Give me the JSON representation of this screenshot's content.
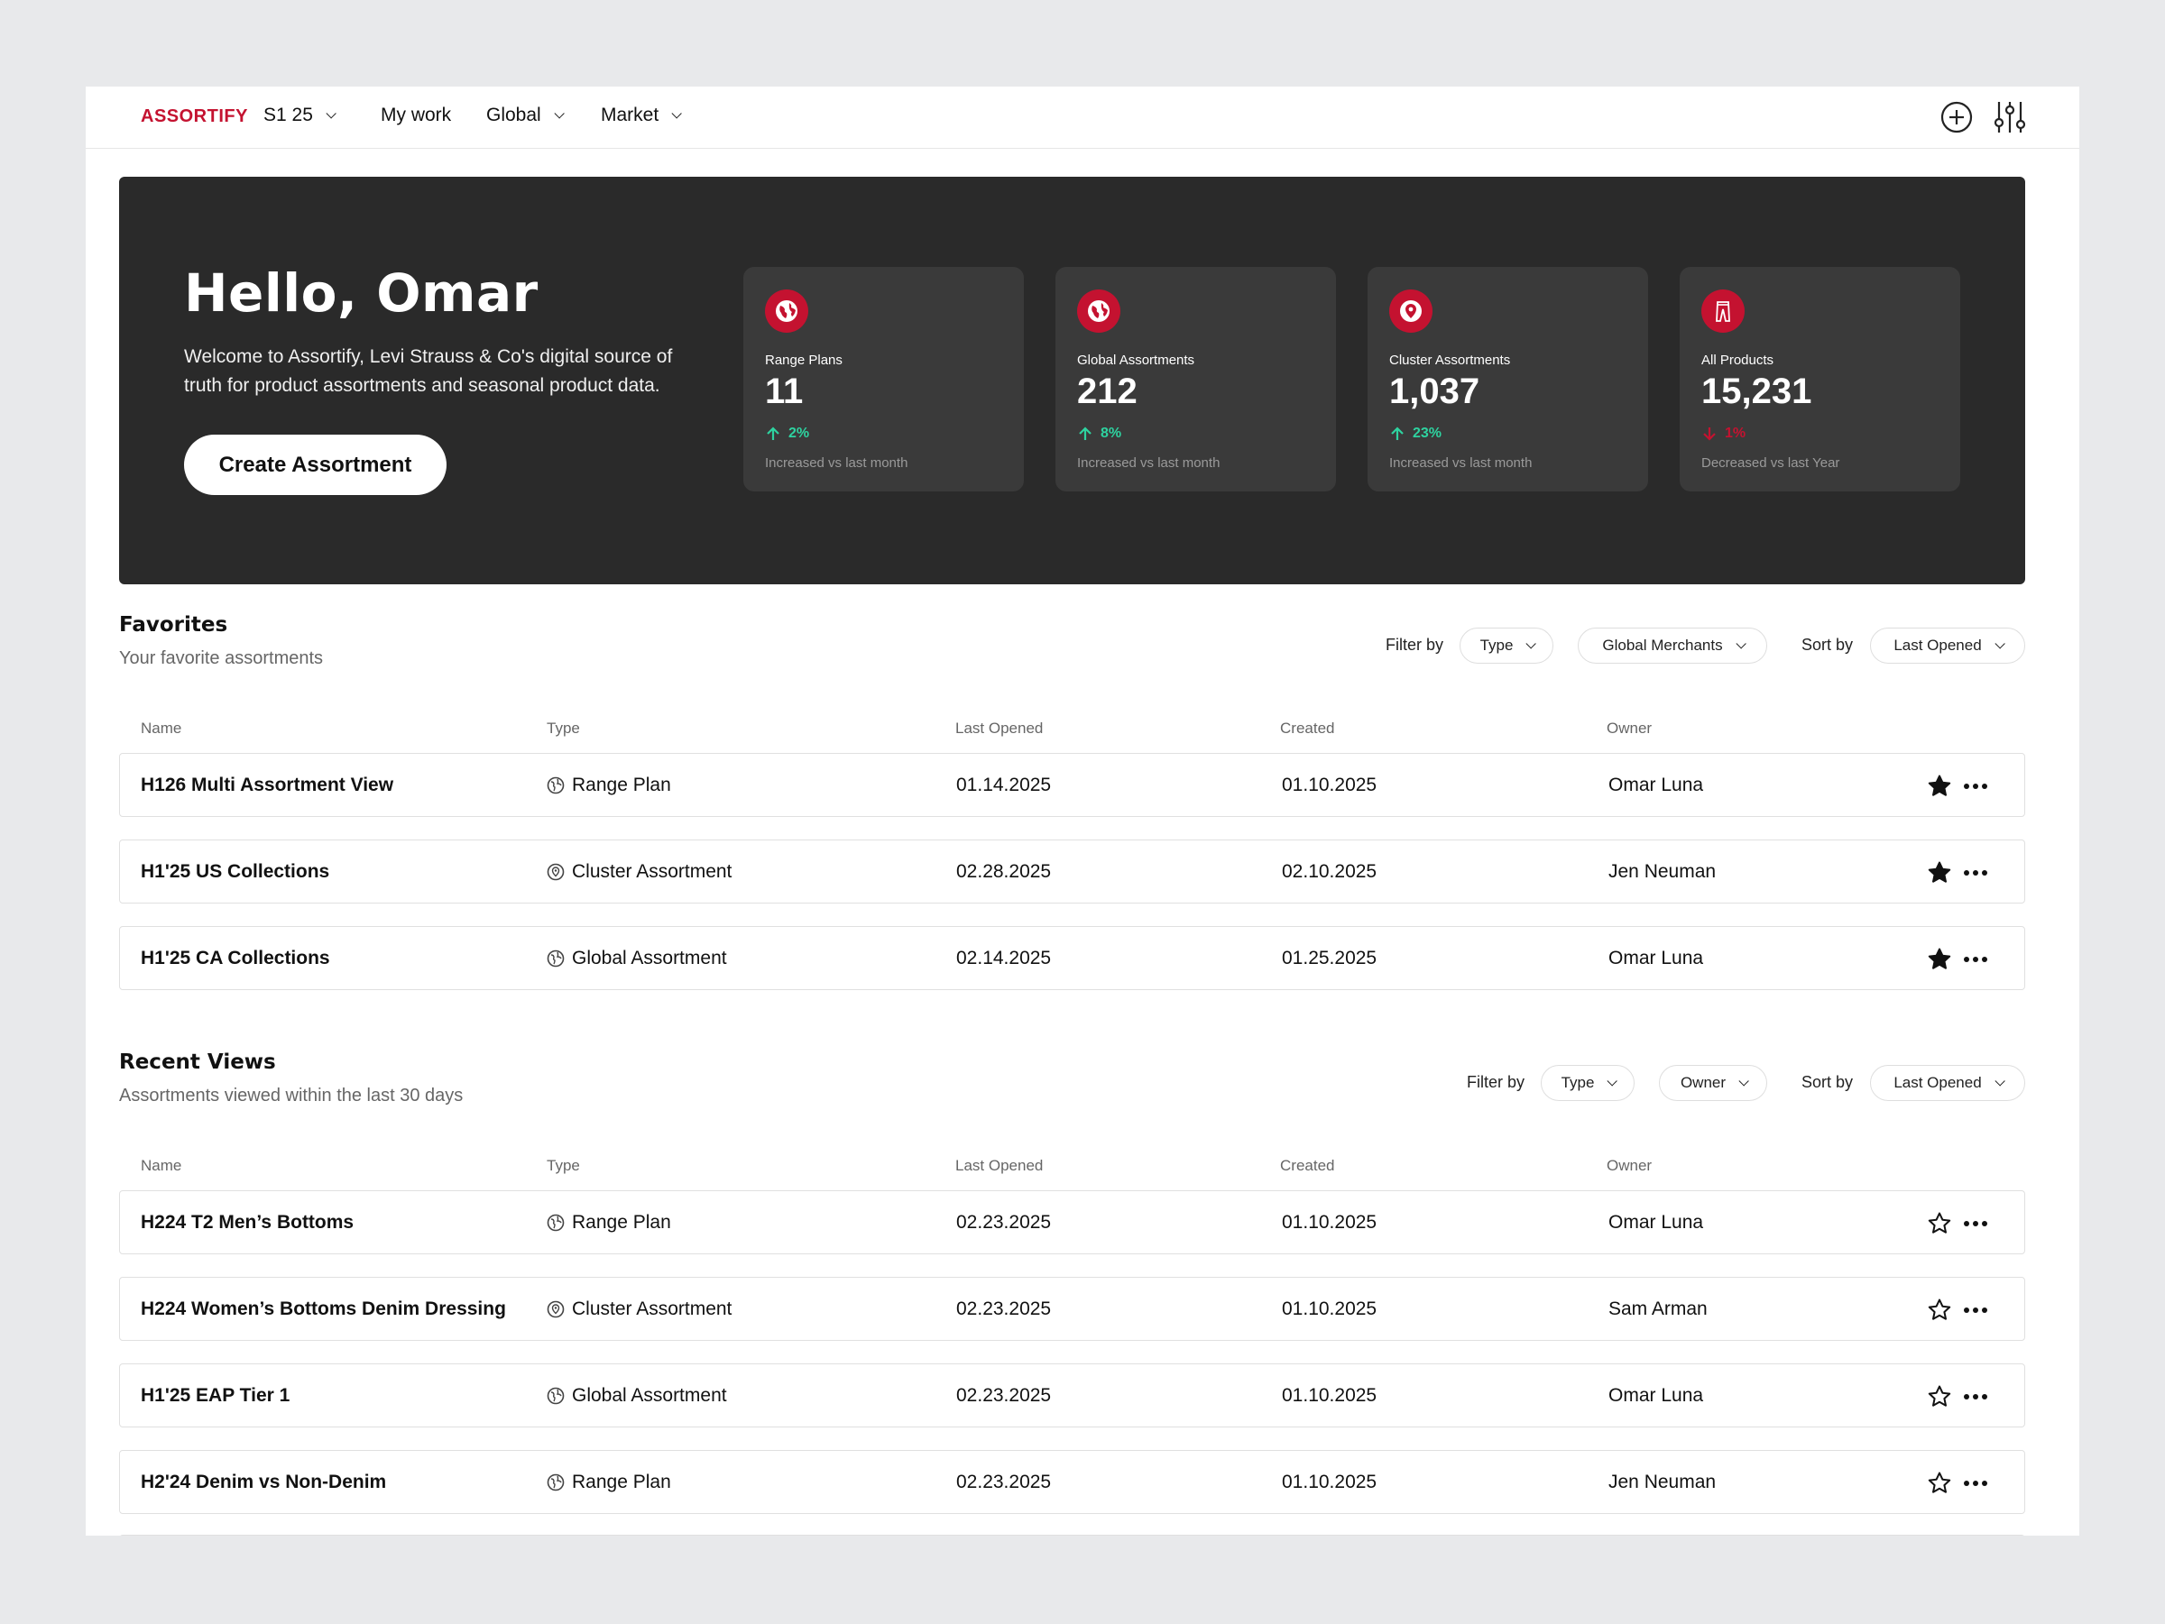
{
  "nav": {
    "logo": "ASSORTIFY",
    "season": "S1 25",
    "items": [
      "My work",
      "Global",
      "Market"
    ]
  },
  "hero": {
    "greeting": "Hello, Omar",
    "description": "Welcome to Assortify, Levi Strauss & Co's digital source of truth for product assortments and seasonal product data.",
    "cta": "Create Assortment",
    "stats": [
      {
        "icon": "globe-icon",
        "label": "Range Plans",
        "value": "11",
        "change": "2%",
        "direction": "up",
        "note": "Increased vs last month"
      },
      {
        "icon": "globe-icon",
        "label": "Global Assortments",
        "value": "212",
        "change": "8%",
        "direction": "up",
        "note": "Increased vs last month"
      },
      {
        "icon": "location-pin-icon",
        "label": "Cluster Assortments",
        "value": "1,037",
        "change": "23%",
        "direction": "up",
        "note": "Increased vs last month"
      },
      {
        "icon": "jeans-icon",
        "label": "All Products",
        "value": "15,231",
        "change": "1%",
        "direction": "down",
        "note": "Decreased vs last Year"
      }
    ]
  },
  "colors": {
    "brand": "#c41230",
    "hero_bg": "#2a2a2a",
    "card_bg": "#3a3a3a",
    "increase": "#2ed3a0",
    "decrease": "#c41230"
  },
  "columns": {
    "name": "Name",
    "type": "Type",
    "last_opened": "Last Opened",
    "created": "Created",
    "owner": "Owner"
  },
  "favorites": {
    "title": "Favorites",
    "subtitle": "Your favorite assortments",
    "filter_label": "Filter by",
    "filter_1": "Type",
    "filter_2": "Global Merchants",
    "sort_label": "Sort by",
    "sort": "Last Opened",
    "rows": [
      {
        "name": "H126 Multi Assortment View",
        "type": "Range Plan",
        "type_icon": "globe-icon",
        "last_opened": "01.14.2025",
        "created": "01.10.2025",
        "owner": "Omar Luna",
        "starred": true
      },
      {
        "name": "H1'25 US Collections",
        "type": "Cluster Assortment",
        "type_icon": "location-pin-icon",
        "last_opened": "02.28.2025",
        "created": "02.10.2025",
        "owner": "Jen Neuman",
        "starred": true
      },
      {
        "name": "H1'25 CA Collections",
        "type": "Global Assortment",
        "type_icon": "globe-icon",
        "last_opened": "02.14.2025",
        "created": "01.25.2025",
        "owner": "Omar Luna",
        "starred": true
      }
    ]
  },
  "recent": {
    "title": "Recent Views",
    "subtitle": "Assortments viewed within the last 30 days",
    "filter_label": "Filter by",
    "filter_1": "Type",
    "filter_2": "Owner",
    "sort_label": "Sort by",
    "sort": "Last Opened",
    "rows": [
      {
        "name": "H224 T2 Men’s Bottoms",
        "type": "Range Plan",
        "type_icon": "globe-icon",
        "last_opened": "02.23.2025",
        "created": "01.10.2025",
        "owner": "Omar Luna",
        "starred": false
      },
      {
        "name": "H224 Women’s Bottoms Denim Dressing",
        "type": "Cluster Assortment",
        "type_icon": "location-pin-icon",
        "last_opened": "02.23.2025",
        "created": "01.10.2025",
        "owner": "Sam Arman",
        "starred": false
      },
      {
        "name": "H1'25 EAP Tier 1",
        "type": "Global Assortment",
        "type_icon": "globe-icon",
        "last_opened": "02.23.2025",
        "created": "01.10.2025",
        "owner": "Omar Luna",
        "starred": false
      },
      {
        "name": "H2'24 Denim vs Non-Denim",
        "type": "Range Plan",
        "type_icon": "globe-icon",
        "last_opened": "02.23.2025",
        "created": "01.10.2025",
        "owner": "Jen Neuman",
        "starred": false
      }
    ]
  }
}
